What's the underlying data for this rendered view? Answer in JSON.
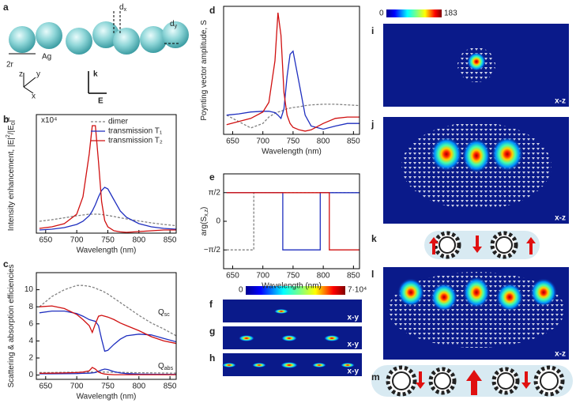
{
  "panel_labels": [
    "a",
    "b",
    "c",
    "d",
    "e",
    "f",
    "g",
    "h",
    "i",
    "j",
    "k",
    "l",
    "m"
  ],
  "diagram_a": {
    "dx": [
      {
        "text": "d"
      },
      {
        "text": "x",
        "shift": "sub"
      }
    ],
    "dy": [
      {
        "text": "d"
      },
      {
        "text": "y",
        "shift": "sub"
      }
    ],
    "radius": "2r",
    "material": "Ag",
    "axes": [
      "z",
      "y",
      "x"
    ],
    "wavevector": "k",
    "field": "E"
  },
  "colorbars": [
    {
      "min": "0",
      "max": "183"
    },
    {
      "min": "0",
      "max": "7·10⁴"
    }
  ],
  "map_labels": [
    "x-y",
    "x-y",
    "x-y",
    "x-z",
    "x-z",
    "x-z"
  ],
  "chart_data": [
    {
      "type": "line",
      "xlabel": "Wavelength (nm)",
      "ylabel": [
        {
          "text": "Intensity enhancement, |E|"
        },
        {
          "text": "2",
          "shift": "sup"
        },
        {
          "text": "/|E"
        },
        {
          "text": "0",
          "shift": "sub"
        },
        {
          "text": "|"
        },
        {
          "text": "2",
          "shift": "sup"
        }
      ],
      "annotations": [
        [
          {
            "text": "x10⁴"
          }
        ]
      ],
      "legend": "upper right",
      "xlim": [
        635,
        860
      ],
      "xticks": [
        650,
        700,
        750,
        800,
        850
      ],
      "ylim": [
        0,
        7.5
      ],
      "x": [
        640,
        660,
        680,
        700,
        710,
        720,
        725,
        730,
        735,
        740,
        745,
        750,
        760,
        770,
        780,
        800,
        820,
        840,
        860
      ],
      "series": [
        {
          "name": "dimer",
          "color": "#808080",
          "dash": "dashed",
          "values": [
            0.75,
            0.85,
            0.97,
            1.1,
            1.15,
            1.2,
            1.2,
            1.2,
            1.2,
            1.18,
            1.15,
            1.12,
            1.05,
            0.97,
            0.9,
            0.77,
            0.65,
            0.55,
            0.47
          ]
        },
        {
          "name": "transmission T₁",
          "color": "#1f2fbf",
          "values": [
            0.2,
            0.25,
            0.35,
            0.55,
            0.75,
            1.1,
            1.4,
            1.8,
            2.3,
            2.7,
            2.9,
            2.8,
            2.1,
            1.4,
            1.0,
            0.6,
            0.4,
            0.3,
            0.25
          ]
        },
        {
          "name": "transmission T₂",
          "color": "#d01010",
          "values": [
            0.3,
            0.4,
            0.6,
            1.2,
            2.3,
            5.0,
            6.8,
            6.8,
            4.5,
            2.0,
            0.8,
            0.4,
            0.15,
            0.08,
            0.05,
            0.1,
            0.15,
            0.2,
            0.2
          ]
        }
      ]
    },
    {
      "type": "line",
      "xlabel": "Wavelength (nm)",
      "ylabel": [
        {
          "text": "Scattering & absorption efficiencies"
        }
      ],
      "annotations": [
        [
          {
            "text": "Q"
          },
          {
            "text": "sc",
            "shift": "sub"
          }
        ],
        [
          {
            "text": "Q"
          },
          {
            "text": "abs",
            "shift": "sub"
          }
        ]
      ],
      "xlim": [
        635,
        860
      ],
      "xticks": [
        650,
        700,
        750,
        800,
        850
      ],
      "ylim": [
        -0.5,
        12
      ],
      "yticks": [
        0,
        2,
        4,
        6,
        8,
        10
      ],
      "x": [
        640,
        660,
        680,
        700,
        710,
        720,
        725,
        730,
        735,
        740,
        745,
        750,
        760,
        770,
        780,
        800,
        820,
        840,
        860
      ],
      "series": [
        {
          "color": "#808080",
          "dash": "dashed",
          "values": [
            8.0,
            9.2,
            10.0,
            10.5,
            10.5,
            10.4,
            10.3,
            10.2,
            10.0,
            9.9,
            9.7,
            9.5,
            9.0,
            8.5,
            8.0,
            7.0,
            6.1,
            5.4,
            4.6
          ]
        },
        {
          "color": "#1f2fbf",
          "values": [
            7.3,
            7.5,
            7.5,
            7.2,
            6.9,
            6.5,
            6.4,
            6.3,
            5.8,
            4.2,
            2.8,
            2.9,
            3.6,
            4.2,
            4.6,
            4.8,
            4.7,
            4.3,
            3.9
          ]
        },
        {
          "color": "#d01010",
          "values": [
            8.0,
            8.1,
            7.8,
            7.1,
            6.5,
            5.8,
            5.0,
            6.0,
            6.9,
            7.0,
            6.9,
            6.8,
            6.5,
            6.1,
            5.8,
            5.2,
            4.5,
            4.0,
            3.7
          ]
        },
        {
          "color": "#808080",
          "dash": "dashed",
          "values": [
            0.3,
            0.3,
            0.32,
            0.33,
            0.34,
            0.35,
            0.35,
            0.35,
            0.35,
            0.35,
            0.35,
            0.34,
            0.33,
            0.32,
            0.3,
            0.28,
            0.26,
            0.24,
            0.22
          ]
        },
        {
          "color": "#1f2fbf",
          "values": [
            0.15,
            0.15,
            0.17,
            0.18,
            0.2,
            0.22,
            0.25,
            0.3,
            0.45,
            0.6,
            0.7,
            0.65,
            0.4,
            0.25,
            0.18,
            0.12,
            0.1,
            0.08,
            0.07
          ]
        },
        {
          "color": "#d01010",
          "values": [
            0.2,
            0.22,
            0.25,
            0.3,
            0.35,
            0.5,
            0.9,
            0.7,
            0.35,
            0.2,
            0.12,
            0.08,
            0.05,
            0.05,
            0.05,
            0.05,
            0.05,
            0.05,
            0.05
          ]
        }
      ]
    },
    {
      "type": "line",
      "xlabel": "Wavelength (nm)",
      "ylabel": [
        {
          "text": "Poynting vector amplitude, S"
        }
      ],
      "xlim": [
        635,
        860
      ],
      "xticks": [
        650,
        700,
        750,
        800,
        850
      ],
      "ylim": [
        -5,
        195
      ],
      "x": [
        640,
        660,
        680,
        700,
        710,
        720,
        725,
        730,
        735,
        740,
        745,
        750,
        760,
        770,
        780,
        800,
        820,
        840,
        860
      ],
      "series": [
        {
          "color": "#808080",
          "dash": "dashed",
          "values": [
            25,
            15,
            5,
            12,
            22,
            28,
            30,
            31,
            33,
            35,
            36,
            37,
            38,
            40,
            41,
            42,
            42,
            41,
            40
          ]
        },
        {
          "color": "#1f2fbf",
          "values": [
            25,
            27,
            30,
            31,
            31,
            29,
            25,
            20,
            35,
            85,
            120,
            125,
            75,
            25,
            8,
            3,
            8,
            12,
            12
          ]
        },
        {
          "color": "#d01010",
          "values": [
            10,
            15,
            20,
            30,
            45,
            110,
            185,
            150,
            60,
            25,
            12,
            6,
            2,
            0,
            2,
            12,
            20,
            22,
            22
          ]
        }
      ]
    },
    {
      "type": "line",
      "xlabel": "Wavelength (nm)",
      "ylabel": [
        {
          "text": "arg(S"
        },
        {
          "text": "x,z",
          "shift": "sub"
        },
        {
          "text": ")"
        }
      ],
      "xlim": [
        635,
        860
      ],
      "xticks": [
        650,
        700,
        750,
        800,
        850
      ],
      "ylim": [
        -2.6,
        2.6
      ],
      "yticks": [
        {
          "value": -1.5708,
          "label": "−π/2"
        },
        0,
        {
          "value": 1.5708,
          "label": "π/2"
        }
      ],
      "series": [
        {
          "color": "#808080",
          "dash": "dashed",
          "x": [
            640,
            685,
            685,
            860
          ],
          "values": [
            -1.5708,
            -1.5708,
            1.5708,
            1.5708
          ]
        },
        {
          "color": "#1f2fbf",
          "x": [
            640,
            733,
            733,
            795,
            795,
            860
          ],
          "values": [
            1.5708,
            1.5708,
            -1.5708,
            -1.5708,
            1.5708,
            1.5708
          ]
        },
        {
          "color": "#d01010",
          "x": [
            640,
            810,
            810,
            860
          ],
          "values": [
            1.5708,
            1.5708,
            -1.5708,
            -1.5708
          ]
        }
      ]
    }
  ]
}
